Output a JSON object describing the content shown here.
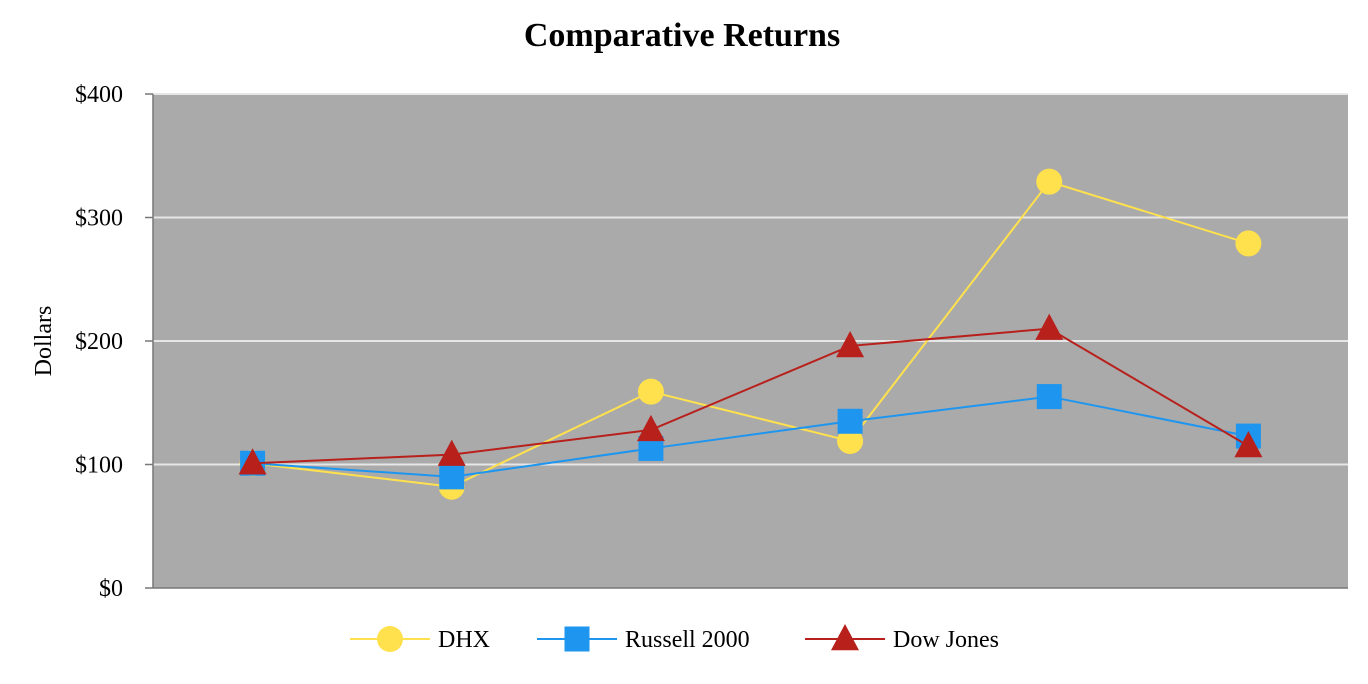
{
  "chart_data": {
    "type": "line",
    "title": "Comparative Returns",
    "xlabel": "",
    "ylabel": "Dollars",
    "ylim": [
      0,
      400
    ],
    "yticks": [
      {
        "value": 0,
        "label": "$0"
      },
      {
        "value": 100,
        "label": "$100"
      },
      {
        "value": 200,
        "label": "$200"
      },
      {
        "value": 300,
        "label": "$300"
      },
      {
        "value": 400,
        "label": "$400"
      }
    ],
    "grid": true,
    "plot_background": "#aaaaaa",
    "legend_position": "bottom",
    "x": [
      1,
      2,
      3,
      4,
      5,
      6
    ],
    "series": [
      {
        "name": "DHX",
        "color": "#ffe14d",
        "marker": "circle",
        "values": [
          101,
          82,
          159,
          119,
          329,
          279
        ]
      },
      {
        "name": "Russell 2000",
        "color": "#1e96f0",
        "marker": "square",
        "values": [
          101,
          90,
          113,
          135,
          155,
          123
        ]
      },
      {
        "name": "Dow Jones",
        "color": "#b8201c",
        "marker": "triangle",
        "values": [
          101,
          108,
          128,
          196,
          210,
          115
        ]
      }
    ]
  }
}
